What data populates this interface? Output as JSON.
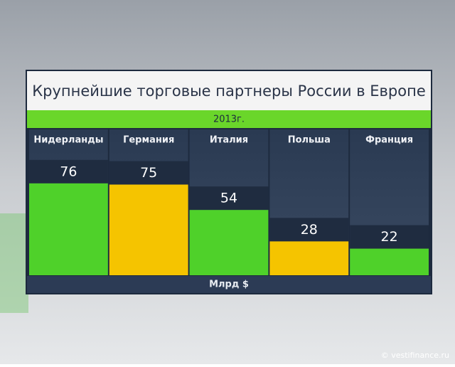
{
  "chart_data": {
    "type": "bar",
    "title": "Крупнейшие торговые партнеры России в Европе",
    "subtitle": "2013г.",
    "categories": [
      "Нидерланды",
      "Германия",
      "Италия",
      "Польша",
      "Франция"
    ],
    "values": [
      76,
      75,
      54,
      28,
      22
    ],
    "colors": [
      "#4fd12a",
      "#f5c400",
      "#4fd12a",
      "#f5c400",
      "#4fd12a"
    ],
    "unit_label": "Млрд $",
    "watermark": "© vestifinance.ru"
  }
}
